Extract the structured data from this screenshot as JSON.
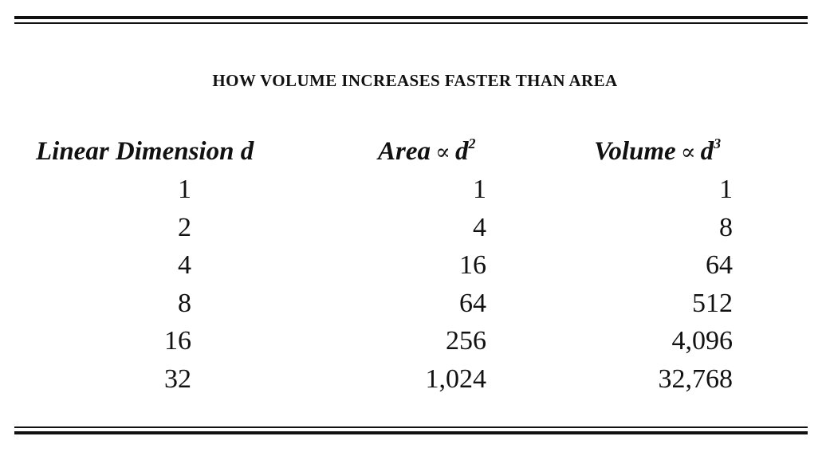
{
  "title": "HOW VOLUME INCREASES FASTER THAN AREA",
  "headers": {
    "linear": "Linear Dimension d",
    "area_label": "Area",
    "area_symbol": "∝",
    "area_var": "d",
    "area_exp": "2",
    "volume_label": "Volume",
    "volume_symbol": "∝",
    "volume_var": "d",
    "volume_exp": "3"
  },
  "rows": [
    {
      "d": "1",
      "area": "1",
      "volume": "1"
    },
    {
      "d": "2",
      "area": "4",
      "volume": "8"
    },
    {
      "d": "4",
      "area": "16",
      "volume": "64"
    },
    {
      "d": "8",
      "area": "64",
      "volume": "512"
    },
    {
      "d": "16",
      "area": "256",
      "volume": "4,096"
    },
    {
      "d": "32",
      "area": "1,024",
      "volume": "32,768"
    }
  ]
}
